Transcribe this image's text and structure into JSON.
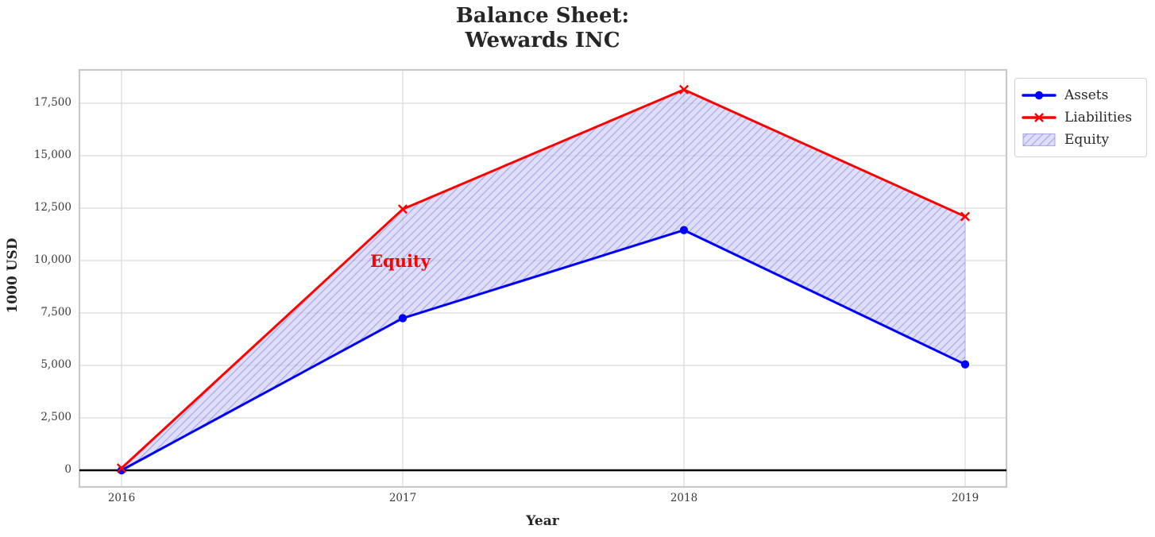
{
  "chart_data": {
    "type": "line",
    "title": "Balance Sheet:\nWewards INC",
    "xlabel": "Year",
    "ylabel": "1000 USD",
    "x": [
      2016,
      2017,
      2018,
      2019
    ],
    "x_tick_labels": [
      "2016",
      "2017",
      "2018",
      "2019"
    ],
    "y_tick_values": [
      0,
      2500,
      5000,
      7500,
      10000,
      12500,
      15000,
      17500
    ],
    "y_tick_labels": [
      "0",
      "2,500",
      "5,000",
      "7,500",
      "10,000",
      "12,500",
      "15,000",
      "17,500"
    ],
    "ylim": [
      -800,
      19100
    ],
    "grid": true,
    "zero_line": true,
    "series": [
      {
        "name": "Assets",
        "values": [
          0,
          7250,
          11450,
          5050
        ],
        "color": "#0000ff",
        "marker": "circle"
      },
      {
        "name": "Liabilities",
        "values": [
          100,
          12450,
          18150,
          12100
        ],
        "color": "#ff0000",
        "marker": "x"
      }
    ],
    "fill_between": {
      "name": "Equity",
      "upper": "Liabilities",
      "lower": "Assets",
      "hatch": "/",
      "fill_color": "#ccccf5",
      "hatch_color": "#7878d8"
    },
    "annotation": {
      "text": "Equity",
      "x": 2016.9,
      "y": 9900,
      "color": "#ff0000"
    },
    "legend": [
      {
        "label": "Assets"
      },
      {
        "label": "Liabilities"
      },
      {
        "label": "Equity"
      }
    ],
    "legend_position": "outside upper right",
    "colors": {
      "grid": "#d9d9d9",
      "spine": "#c8c8c8",
      "zero_line": "#000000",
      "tick_text": "#3a3a3a",
      "title_text": "#262626"
    }
  }
}
